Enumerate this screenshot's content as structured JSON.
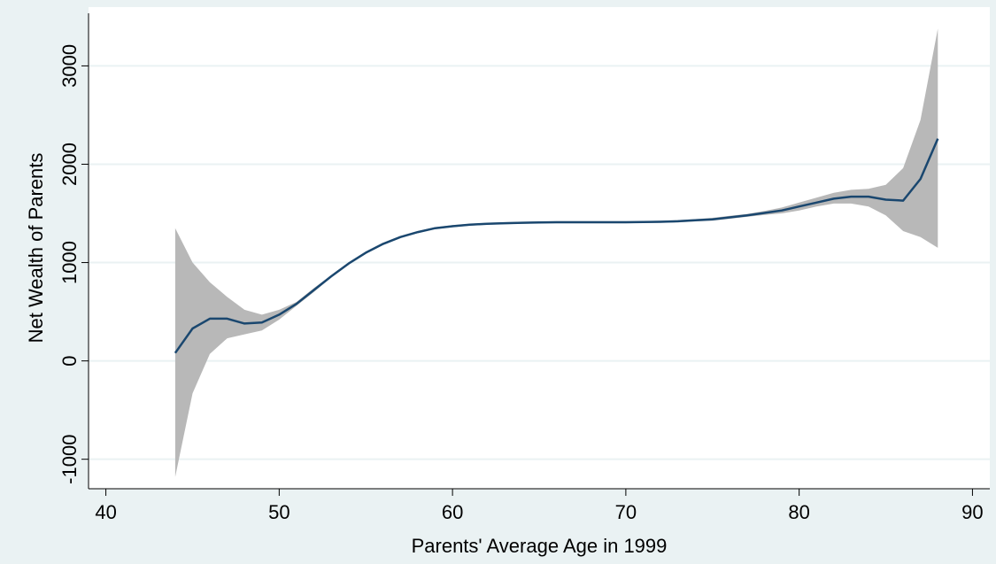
{
  "chart_data": {
    "type": "line",
    "x_label": "Parents' Average Age in 1999",
    "y_label": "Net Wealth of Parents",
    "x": [
      44,
      45,
      46,
      47,
      48,
      49,
      50,
      51,
      52,
      53,
      54,
      55,
      56,
      57,
      58,
      59,
      60,
      61,
      62,
      63,
      64,
      65,
      66,
      67,
      68,
      69,
      70,
      71,
      72,
      73,
      74,
      75,
      76,
      77,
      78,
      79,
      80,
      81,
      82,
      83,
      84,
      85,
      86,
      87,
      88
    ],
    "values": [
      80,
      330,
      430,
      430,
      380,
      390,
      470,
      580,
      720,
      860,
      990,
      1100,
      1190,
      1260,
      1310,
      1350,
      1370,
      1385,
      1395,
      1400,
      1405,
      1408,
      1410,
      1410,
      1410,
      1410,
      1410,
      1412,
      1415,
      1420,
      1430,
      1440,
      1460,
      1480,
      1505,
      1530,
      1570,
      1610,
      1650,
      1670,
      1670,
      1640,
      1630,
      1850,
      2260
    ],
    "upper": [
      1350,
      1000,
      800,
      650,
      520,
      470,
      520,
      600,
      740,
      870,
      1000,
      1110,
      1200,
      1270,
      1320,
      1360,
      1380,
      1395,
      1405,
      1410,
      1415,
      1418,
      1420,
      1420,
      1420,
      1420,
      1420,
      1422,
      1425,
      1432,
      1442,
      1455,
      1475,
      1495,
      1525,
      1560,
      1610,
      1660,
      1710,
      1740,
      1750,
      1790,
      1960,
      2450,
      3380
    ],
    "lower": [
      -1180,
      -330,
      70,
      230,
      270,
      310,
      420,
      560,
      700,
      850,
      980,
      1090,
      1180,
      1250,
      1300,
      1340,
      1360,
      1375,
      1385,
      1390,
      1395,
      1398,
      1400,
      1400,
      1400,
      1400,
      1400,
      1402,
      1405,
      1408,
      1418,
      1425,
      1445,
      1465,
      1485,
      1500,
      1530,
      1570,
      1600,
      1600,
      1570,
      1480,
      1320,
      1260,
      1150
    ],
    "color": "#1a476f",
    "band_color": "#b8b8b8",
    "xlim": [
      39,
      91
    ],
    "xticks": [
      40,
      50,
      60,
      70,
      80,
      90
    ],
    "ylim": [
      -1300,
      3580
    ],
    "yticks": [
      -1000,
      0,
      1000,
      2000,
      3000
    ],
    "grid": true
  }
}
